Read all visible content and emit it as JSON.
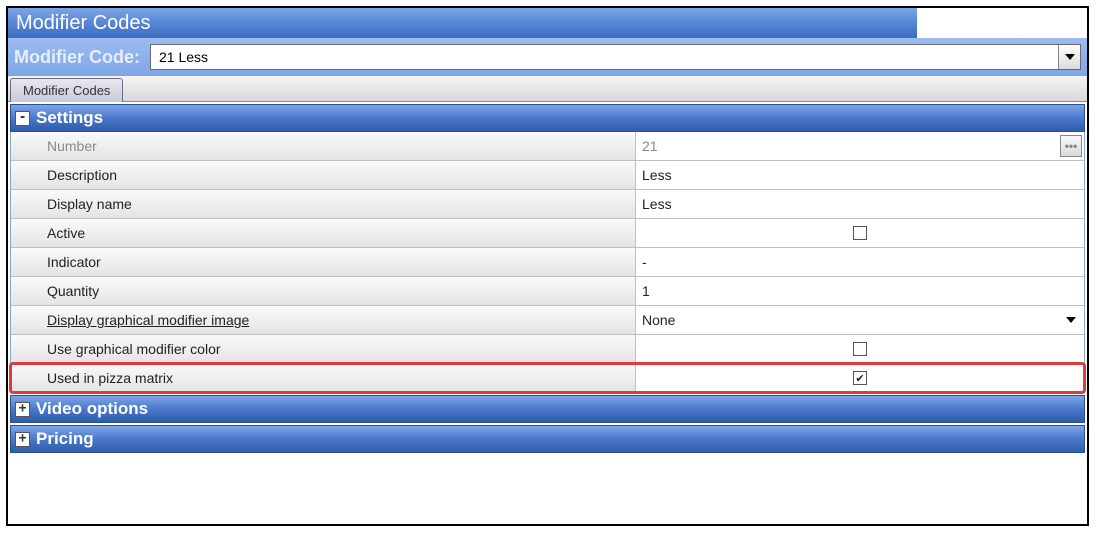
{
  "titlebar": {
    "title": "Modifier Codes"
  },
  "codeRow": {
    "label": "Modifier Code:",
    "value": "21 Less"
  },
  "tabs": [
    {
      "label": "Modifier Codes"
    }
  ],
  "groups": {
    "settings": {
      "title": "Settings"
    },
    "video": {
      "title": "Video options"
    },
    "pricing": {
      "title": "Pricing"
    }
  },
  "settings": {
    "number": {
      "label": "Number",
      "value": "21"
    },
    "description": {
      "label": "Description",
      "value": "Less"
    },
    "displayName": {
      "label": "Display name",
      "value": "Less"
    },
    "active": {
      "label": "Active",
      "checked": false
    },
    "indicator": {
      "label": "Indicator",
      "value": "-"
    },
    "quantity": {
      "label": "Quantity",
      "value": "1"
    },
    "graphImage": {
      "label": "Display graphical modifier image",
      "value": "None"
    },
    "graphColor": {
      "label": "Use graphical modifier color",
      "checked": false
    },
    "pizzaMatrix": {
      "label": "Used in pizza matrix",
      "checked": true
    }
  },
  "colors": {
    "headerGradTop": "#7ea6e6",
    "headerGradBot": "#2f5da8",
    "highlight": "#e03a3a"
  }
}
